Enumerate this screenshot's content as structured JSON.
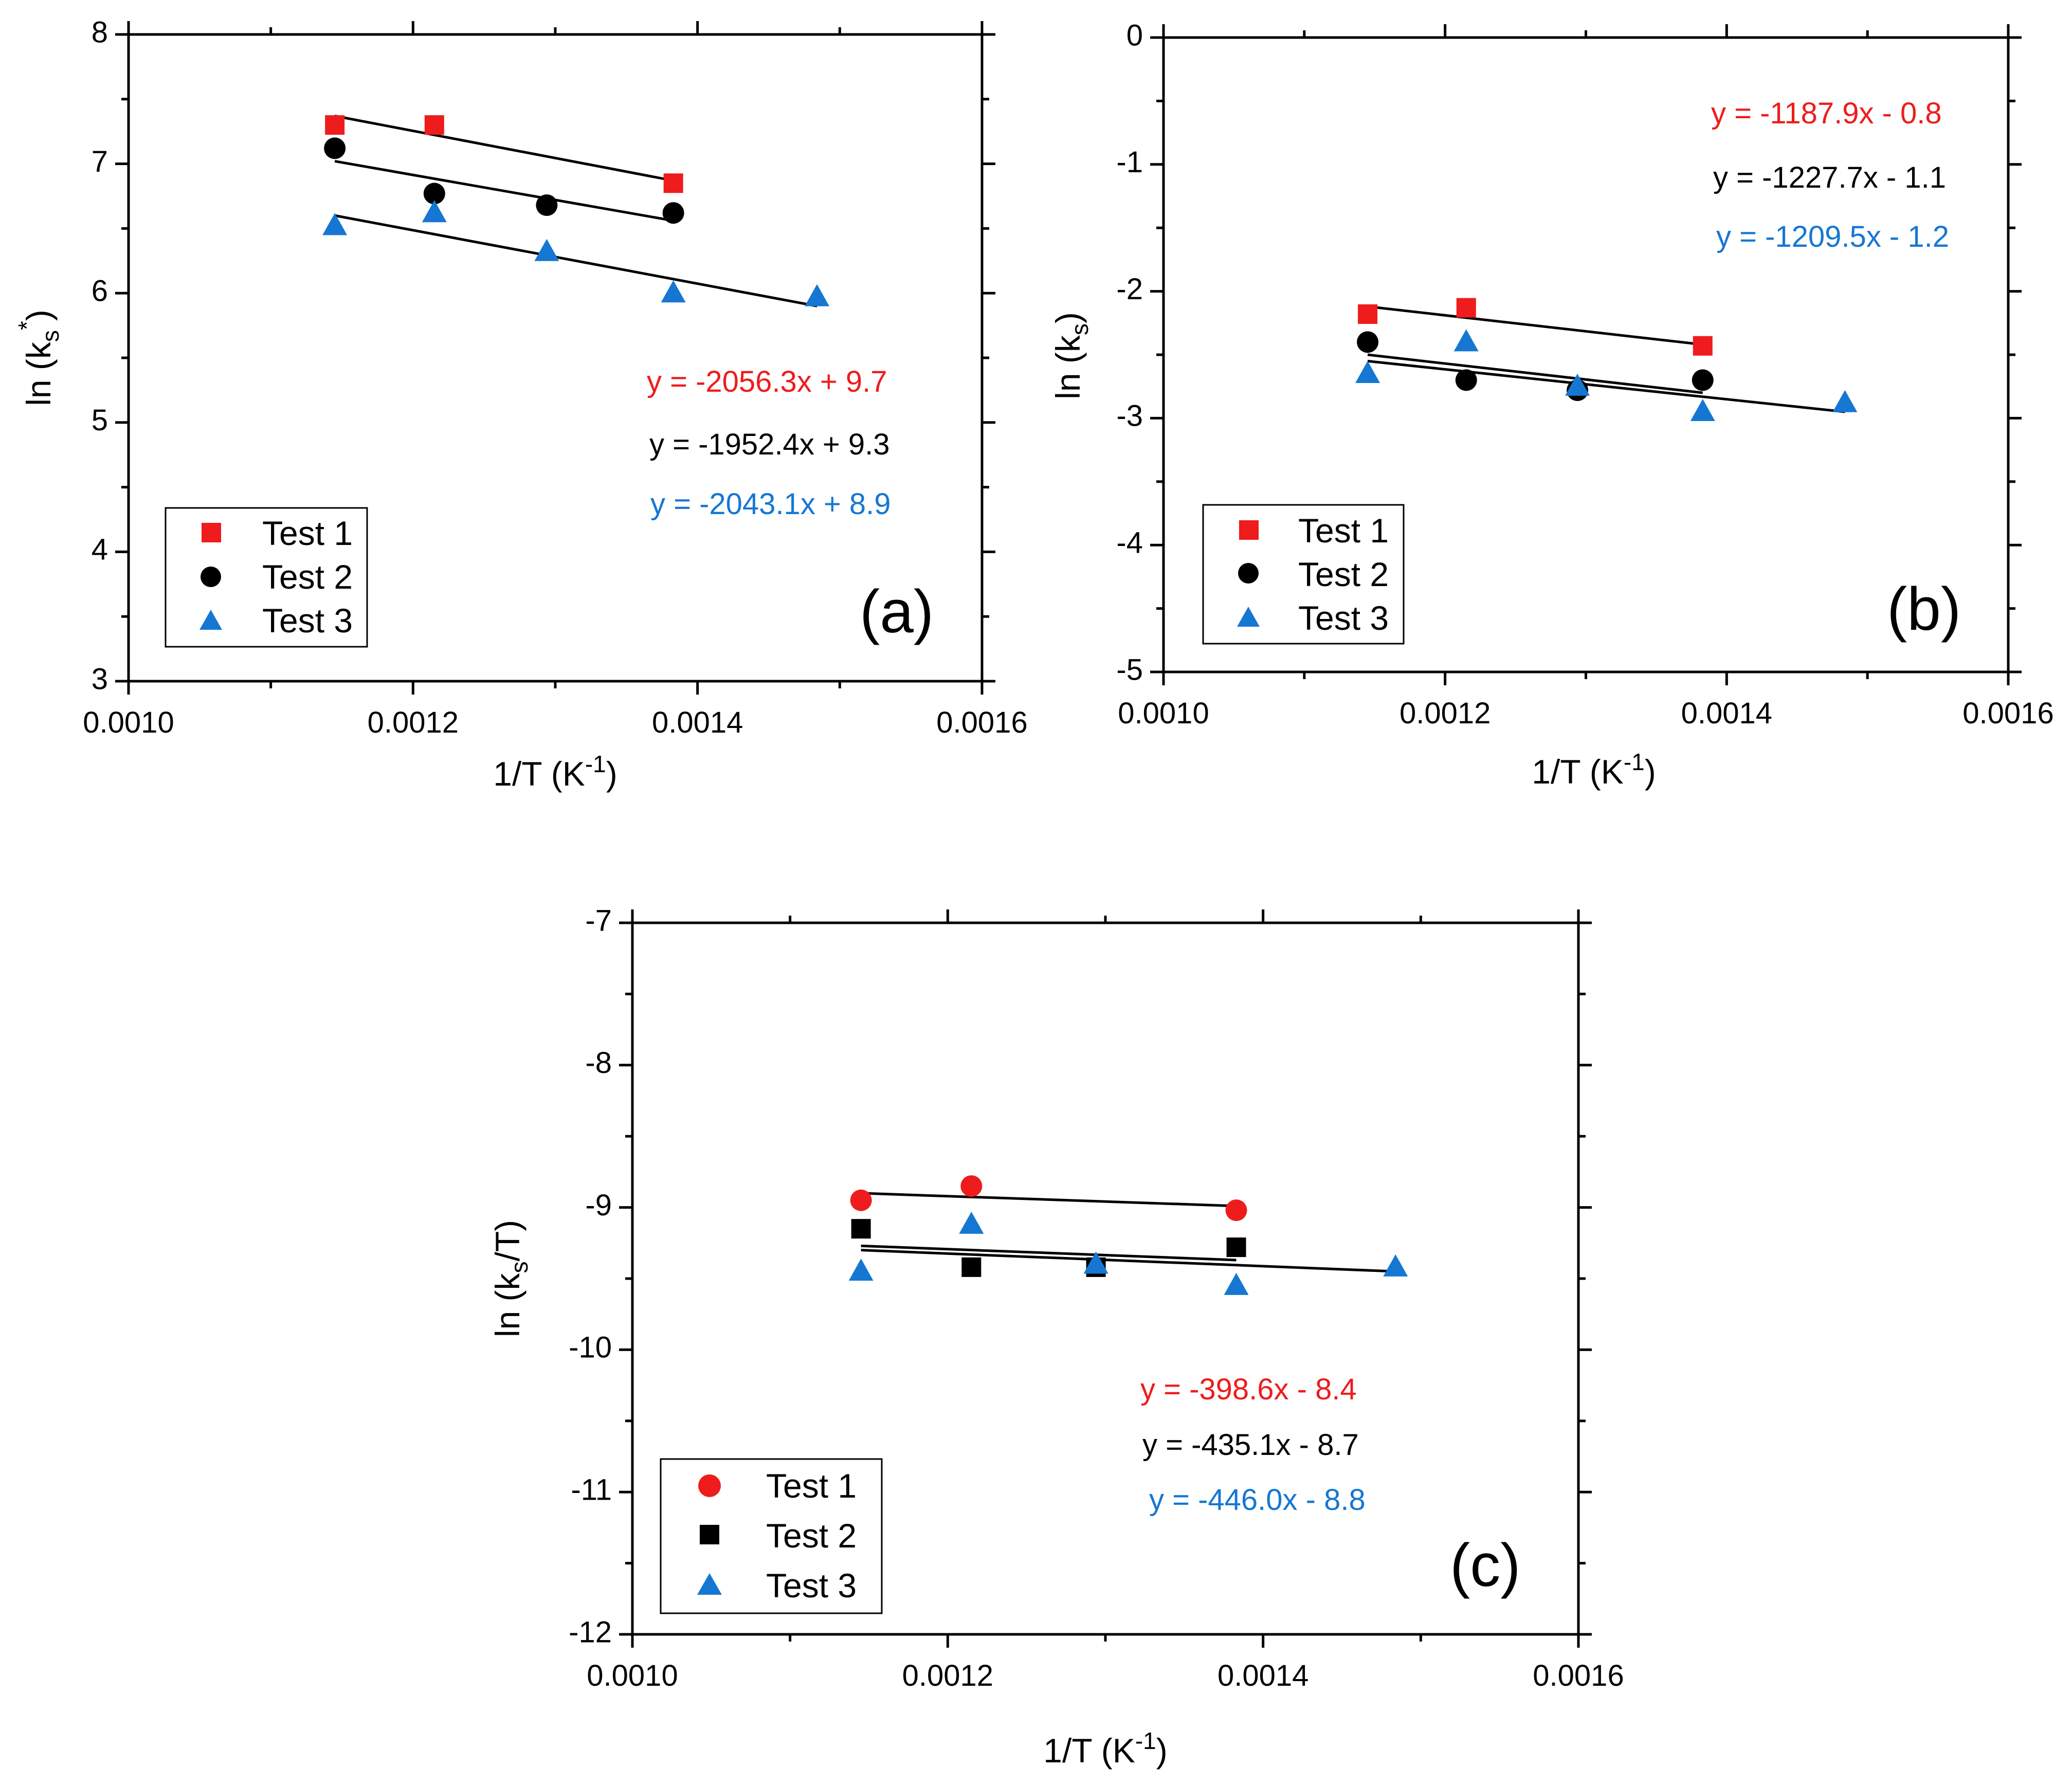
{
  "chart_data": [
    {
      "type": "scatter",
      "panel_label": "(a)",
      "xlabel": "1/T (K",
      "xlabel_sup": "-1",
      "xlabel_close": ")",
      "ylabel": "ln (k",
      "ylabel_sub": "s",
      "ylabel_sup": "*",
      "ylabel_close": ")",
      "xlim": [
        0.001,
        0.0016
      ],
      "ylim": [
        3,
        8
      ],
      "x_ticks": [
        "0.0010",
        "0.0012",
        "0.0014",
        "0.0016"
      ],
      "y_ticks": [
        "3",
        "4",
        "5",
        "6",
        "7",
        "8"
      ],
      "legend_position": "bottom-left",
      "series": [
        {
          "name": "Test 1",
          "marker": "square",
          "color": "#ee1c1c",
          "x": [
            0.001145,
            0.001215,
            0.001383
          ],
          "y": [
            7.3,
            7.3,
            6.85
          ],
          "fit": [
            [
              0.001145,
              7.37
            ],
            [
              0.001383,
              6.87
            ]
          ],
          "equation": "y = -2056.3x + 9.7"
        },
        {
          "name": "Test 2",
          "marker": "circle",
          "color": "#000000",
          "x": [
            0.001145,
            0.001215,
            0.001294,
            0.001383
          ],
          "y": [
            7.12,
            6.77,
            6.68,
            6.62
          ],
          "fit": [
            [
              0.001145,
              7.02
            ],
            [
              0.001383,
              6.56
            ]
          ],
          "equation": "y = -1952.4x + 9.3"
        },
        {
          "name": "Test 3",
          "marker": "triangle",
          "color": "#1677d2",
          "x": [
            0.001145,
            0.001215,
            0.001294,
            0.001383,
            0.001484
          ],
          "y": [
            6.52,
            6.62,
            6.32,
            6.0,
            5.97
          ],
          "fit": [
            [
              0.001145,
              6.6
            ],
            [
              0.001484,
              5.9
            ]
          ],
          "equation": "y = -2043.1x + 8.9"
        }
      ]
    },
    {
      "type": "scatter",
      "panel_label": "(b)",
      "xlabel": "1/T (K",
      "xlabel_sup": "-1",
      "xlabel_close": ")",
      "ylabel": "ln (k",
      "ylabel_sub": "s",
      "ylabel_sup": "",
      "ylabel_close": ")",
      "xlim": [
        0.001,
        0.0016
      ],
      "ylim": [
        -5,
        0
      ],
      "x_ticks": [
        "0.0010",
        "0.0012",
        "0.0014",
        "0.0016"
      ],
      "y_ticks": [
        "-5",
        "-4",
        "-3",
        "-2",
        "-1",
        "0"
      ],
      "legend_position": "bottom-left",
      "series": [
        {
          "name": "Test 1",
          "marker": "square",
          "color": "#ee1c1c",
          "x": [
            0.001145,
            0.001215,
            0.001383
          ],
          "y": [
            -2.18,
            -2.13,
            -2.43
          ],
          "fit": [
            [
              0.001145,
              -2.12
            ],
            [
              0.001383,
              -2.42
            ]
          ],
          "equation": "y = -1187.9x - 0.8"
        },
        {
          "name": "Test 2",
          "marker": "circle",
          "color": "#000000",
          "x": [
            0.001145,
            0.001215,
            0.001294,
            0.001383
          ],
          "y": [
            -2.4,
            -2.7,
            -2.78,
            -2.7
          ],
          "fit": [
            [
              0.001145,
              -2.5
            ],
            [
              0.001383,
              -2.8
            ]
          ],
          "equation": "y = -1227.7x - 1.1"
        },
        {
          "name": "Test 3",
          "marker": "triangle",
          "color": "#1677d2",
          "x": [
            0.001145,
            0.001215,
            0.001294,
            0.001383,
            0.001484
          ],
          "y": [
            -2.65,
            -2.4,
            -2.75,
            -2.95,
            -2.88
          ],
          "fit": [
            [
              0.001145,
              -2.55
            ],
            [
              0.001484,
              -2.95
            ]
          ],
          "equation": "y = -1209.5x - 1.2"
        }
      ]
    },
    {
      "type": "scatter",
      "panel_label": "(c)",
      "xlabel": "1/T (K",
      "xlabel_sup": "-1",
      "xlabel_close": ")",
      "ylabel": "ln (k",
      "ylabel_sub": "s",
      "ylabel_sup": "",
      "ylabel_close": "/T)",
      "xlim": [
        0.001,
        0.0016
      ],
      "ylim": [
        -12,
        -7
      ],
      "x_ticks": [
        "0.0010",
        "0.0012",
        "0.0014",
        "0.0016"
      ],
      "y_ticks": [
        "-12",
        "-11",
        "-10",
        "-9",
        "-8",
        "-7"
      ],
      "legend_position": "bottom-left",
      "series": [
        {
          "name": "Test 1",
          "marker": "circle",
          "color": "#ee1c1c",
          "x": [
            0.001145,
            0.001215,
            0.001383
          ],
          "y": [
            -8.95,
            -8.85,
            -9.02
          ],
          "fit": [
            [
              0.001145,
              -8.9
            ],
            [
              0.001383,
              -8.99
            ]
          ],
          "equation": "y = -398.6x - 8.4"
        },
        {
          "name": "Test 2",
          "marker": "square",
          "color": "#000000",
          "x": [
            0.001145,
            0.001215,
            0.001294,
            0.001383
          ],
          "y": [
            -9.15,
            -9.42,
            -9.42,
            -9.28
          ],
          "fit": [
            [
              0.001145,
              -9.27
            ],
            [
              0.001383,
              -9.37
            ]
          ],
          "equation": "y = -435.1x - 8.7"
        },
        {
          "name": "Test 3",
          "marker": "triangle",
          "color": "#1677d2",
          "x": [
            0.001145,
            0.001215,
            0.001294,
            0.001383,
            0.001484
          ],
          "y": [
            -9.45,
            -9.12,
            -9.4,
            -9.55,
            -9.42
          ],
          "fit": [
            [
              0.001145,
              -9.3
            ],
            [
              0.001484,
              -9.45
            ]
          ],
          "equation": "y = -446.0x - 8.8"
        }
      ]
    }
  ]
}
